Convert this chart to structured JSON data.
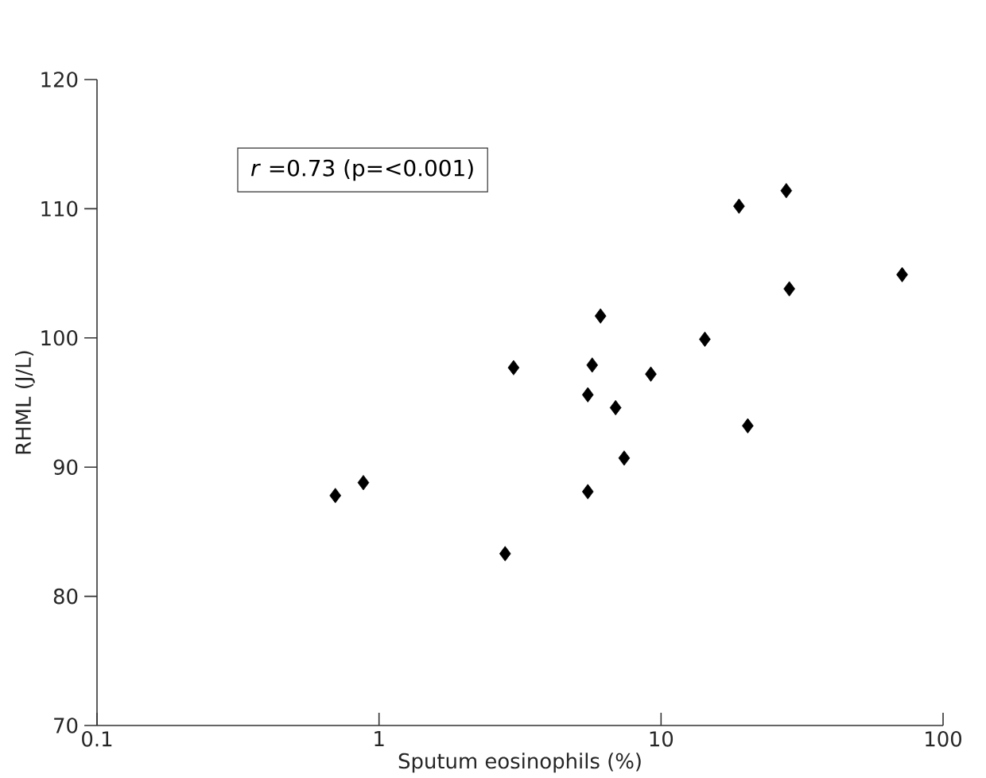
{
  "chart_data": {
    "type": "scatter",
    "xlabel": "Sputum eosinophils (%)",
    "ylabel": "RHML (J/L)",
    "log": "x",
    "xlim": [
      0.1,
      100
    ],
    "xticks": [
      0.1,
      1,
      10,
      100
    ],
    "ylim": [
      70,
      120
    ],
    "yticks": [
      70,
      80,
      90,
      100,
      110,
      120
    ],
    "marker": "diamond",
    "annotations": [
      "*r* =0.73 (p=<0.001)"
    ],
    "series": [
      {
        "color": "#000000",
        "x": [
          0.7,
          0.88,
          2.8,
          3.0,
          5.5,
          5.5,
          5.7,
          6.1,
          6.9,
          7.4,
          9.2,
          14.3,
          18.9,
          20.3,
          27.8,
          28.5,
          71.6
        ],
        "values": [
          87.8,
          88.8,
          83.3,
          97.7,
          88.1,
          95.6,
          97.9,
          101.7,
          94.6,
          90.7,
          97.2,
          99.9,
          110.2,
          93.2,
          111.4,
          103.8,
          104.9
        ]
      }
    ]
  }
}
